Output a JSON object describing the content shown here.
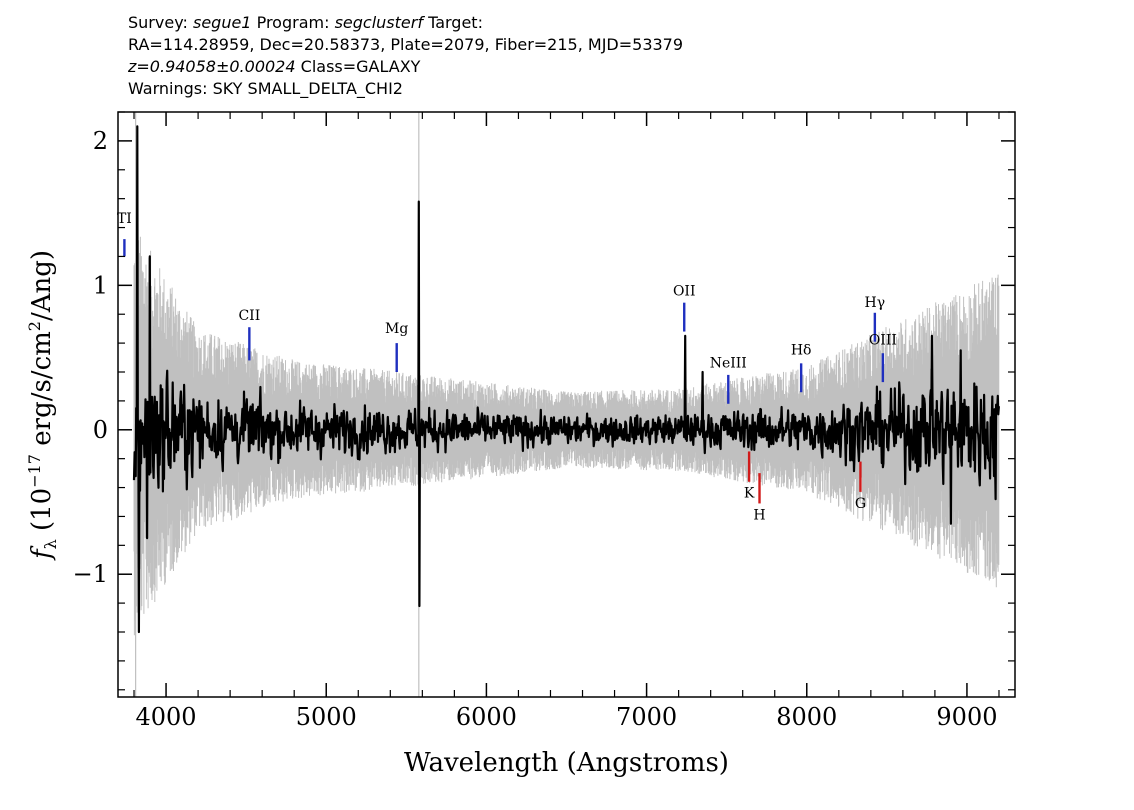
{
  "header": {
    "survey_label": "Survey:",
    "survey": "segue1",
    "program_label": "Program:",
    "program": "segclusterf",
    "target_label": "Target:",
    "line2": "RA=114.28959, Dec=20.58373, Plate=2079, Fiber=215, MJD=53379",
    "redshift": "z=0.94058±0.00024",
    "class_text": "Class=GALAXY",
    "warnings": "Warnings: SKY SMALL_DELTA_CHI2"
  },
  "chart_data": {
    "type": "line",
    "xlabel": "Wavelength (Angstroms)",
    "ylabel_prefix": "f",
    "ylabel_sub": "λ",
    "ylabel_rest": " (10",
    "ylabel_exp": "−17",
    "ylabel_unit": " erg/s/cm",
    "ylabel_unit_exp": "2",
    "ylabel_tail": "/Ang)",
    "xlim": [
      3700,
      9300
    ],
    "ylim": [
      -1.85,
      2.2
    ],
    "xticks": [
      {
        "value": 4000,
        "label": "4000"
      },
      {
        "value": 5000,
        "label": "5000"
      },
      {
        "value": 6000,
        "label": "6000"
      },
      {
        "value": 7000,
        "label": "7000"
      },
      {
        "value": 8000,
        "label": "8000"
      },
      {
        "value": 9000,
        "label": "9000"
      }
    ],
    "yticks": [
      {
        "value": -1,
        "label": "−1"
      },
      {
        "value": 0,
        "label": "0"
      },
      {
        "value": 1,
        "label": "1"
      },
      {
        "value": 2,
        "label": "2"
      }
    ],
    "spectrum": {
      "x_start": 3800,
      "x_end": 9200,
      "noise_amplitude": [
        [
          3800,
          0.65
        ],
        [
          4200,
          0.32
        ],
        [
          4800,
          0.22
        ],
        [
          5500,
          0.18
        ],
        [
          6500,
          0.12
        ],
        [
          7200,
          0.13
        ],
        [
          8000,
          0.2
        ],
        [
          8600,
          0.35
        ],
        [
          9200,
          0.5
        ]
      ],
      "spikes": [
        {
          "x": 3820,
          "y": 2.1
        },
        {
          "x": 3830,
          "y": -1.4
        },
        {
          "x": 3900,
          "y": 1.2
        },
        {
          "x": 3880,
          "y": -0.75
        },
        {
          "x": 5578,
          "y": 1.58
        },
        {
          "x": 5580,
          "y": -1.22
        },
        {
          "x": 7240,
          "y": 0.65
        },
        {
          "x": 7350,
          "y": 0.4
        },
        {
          "x": 8780,
          "y": 0.65
        },
        {
          "x": 8900,
          "y": -0.65
        },
        {
          "x": 8960,
          "y": 0.55
        },
        {
          "x": 9180,
          "y": -0.48
        }
      ],
      "sky_lines": [
        3810,
        5578
      ]
    },
    "line_markers": [
      {
        "name": "TiII",
        "label": "TI",
        "x": 3740,
        "y_top": 1.32,
        "y_bottom": 1.2,
        "color": "#1f2fbf",
        "label_y": 1.43
      },
      {
        "name": "CII",
        "label": "CII",
        "x": 4520,
        "y_top": 0.71,
        "y_bottom": 0.48,
        "color": "#1f2fbf",
        "label_y": 0.76
      },
      {
        "name": "Mg",
        "label": "Mg",
        "x": 5440,
        "y_top": 0.6,
        "y_bottom": 0.4,
        "color": "#1f2fbf",
        "label_y": 0.67
      },
      {
        "name": "OII",
        "label": "OII",
        "x": 7235,
        "y_top": 0.88,
        "y_bottom": 0.68,
        "color": "#1f2fbf",
        "label_y": 0.93
      },
      {
        "name": "NeIII",
        "label": "NeIII",
        "x": 7510,
        "y_top": 0.38,
        "y_bottom": 0.18,
        "color": "#1f2fbf",
        "label_y": 0.43
      },
      {
        "name": "Hdelta",
        "label": "Hδ",
        "x": 7965,
        "y_top": 0.46,
        "y_bottom": 0.26,
        "color": "#1f2fbf",
        "label_y": 0.52
      },
      {
        "name": "Hgamma",
        "label": "Hγ",
        "x": 8425,
        "y_top": 0.81,
        "y_bottom": 0.61,
        "color": "#1f2fbf",
        "label_y": 0.85
      },
      {
        "name": "OIII",
        "label": "OIII",
        "x": 8475,
        "y_top": 0.53,
        "y_bottom": 0.33,
        "color": "#1f2fbf",
        "label_y": 0.59
      },
      {
        "name": "K",
        "label": "K",
        "x": 7640,
        "y_top": -0.15,
        "y_bottom": -0.36,
        "color": "#d11a1a",
        "label_y": -0.47,
        "below": true
      },
      {
        "name": "H",
        "label": "H",
        "x": 7705,
        "y_top": -0.3,
        "y_bottom": -0.51,
        "color": "#d11a1a",
        "label_y": -0.62,
        "below": true
      },
      {
        "name": "G",
        "label": "G",
        "x": 8335,
        "y_top": -0.22,
        "y_bottom": -0.43,
        "color": "#d11a1a",
        "label_y": -0.54,
        "below": true
      }
    ],
    "colors": {
      "flux": "#000000",
      "noise": "#c0c0c0",
      "emission_marker": "#1f2fbf",
      "absorption_marker": "#d11a1a"
    },
    "grid": false
  }
}
